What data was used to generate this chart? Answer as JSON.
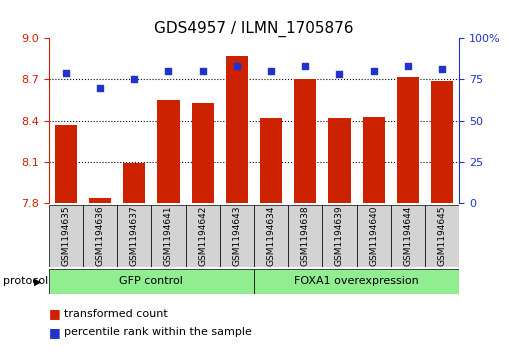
{
  "title": "GDS4957 / ILMN_1705876",
  "samples": [
    "GSM1194635",
    "GSM1194636",
    "GSM1194637",
    "GSM1194641",
    "GSM1194642",
    "GSM1194643",
    "GSM1194634",
    "GSM1194638",
    "GSM1194639",
    "GSM1194640",
    "GSM1194644",
    "GSM1194645"
  ],
  "transformed_count": [
    8.37,
    7.84,
    8.09,
    8.55,
    8.53,
    8.87,
    8.42,
    8.7,
    8.42,
    8.43,
    8.72,
    8.69
  ],
  "percentile_rank": [
    79,
    70,
    75,
    80,
    80,
    83,
    80,
    83,
    78,
    80,
    83,
    81
  ],
  "bar_color": "#cc2200",
  "dot_color": "#2233cc",
  "ylim_left": [
    7.8,
    9.0
  ],
  "ylim_right": [
    0,
    100
  ],
  "yticks_left": [
    7.8,
    8.1,
    8.4,
    8.7,
    9.0
  ],
  "yticks_right": [
    0,
    25,
    50,
    75,
    100
  ],
  "hlines": [
    8.1,
    8.4,
    8.7
  ],
  "gfp_label": "GFP control",
  "foxa1_label": "FOXA1 overexpression",
  "protocol_label": "protocol",
  "legend_bar_label": "transformed count",
  "legend_dot_label": "percentile rank within the sample",
  "gfp_color": "#90ee90",
  "label_bg_color": "#d3d3d3"
}
